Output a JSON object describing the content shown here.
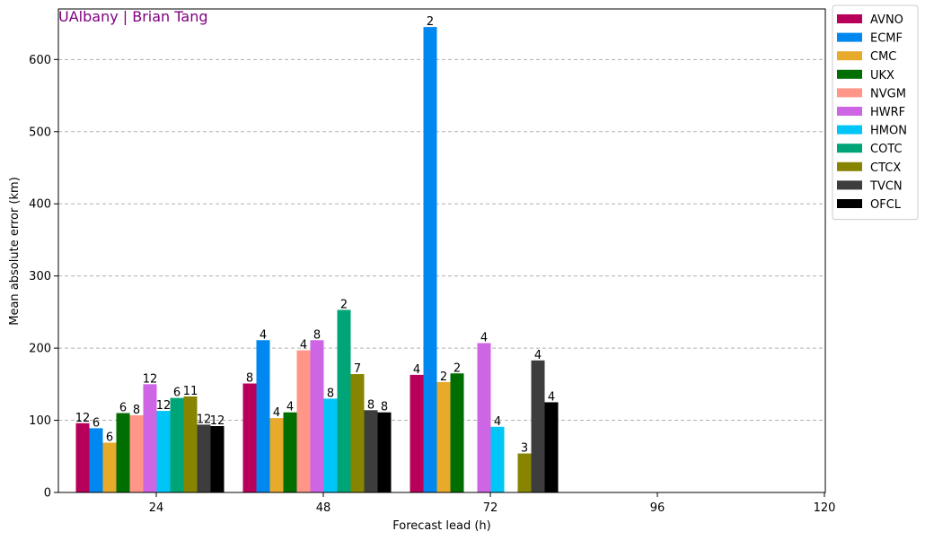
{
  "watermark": {
    "text": "UAlbany | Brian Tang",
    "color": "#800080"
  },
  "chart_data": {
    "type": "bar",
    "title": "",
    "xlabel": "Forecast lead (h)",
    "ylabel": "Mean absolute error (km)",
    "categories": [
      "24",
      "48",
      "72",
      "96",
      "120"
    ],
    "ylim": [
      0,
      670
    ],
    "yticks": [
      0,
      100,
      200,
      300,
      400,
      500,
      600
    ],
    "grid": "y-dashed",
    "legend_position": "outside-top-right",
    "series": [
      {
        "name": "AVNO",
        "color": "#b8005a",
        "values": [
          96,
          151,
          163,
          null,
          null
        ],
        "counts": [
          "12",
          "8",
          "4",
          "",
          ""
        ]
      },
      {
        "name": "ECMF",
        "color": "#0088f0",
        "values": [
          89,
          211,
          645,
          null,
          null
        ],
        "counts": [
          "6",
          "4",
          "2",
          "",
          ""
        ]
      },
      {
        "name": "CMC",
        "color": "#e8aa2a",
        "values": [
          69,
          103,
          153,
          null,
          null
        ],
        "counts": [
          "6",
          "4",
          "2",
          "",
          ""
        ]
      },
      {
        "name": "UKX",
        "color": "#006e00",
        "values": [
          110,
          111,
          165,
          null,
          null
        ],
        "counts": [
          "6",
          "4",
          "2",
          "",
          ""
        ]
      },
      {
        "name": "NVGM",
        "color": "#ff9688",
        "values": [
          107,
          197,
          null,
          null,
          null
        ],
        "counts": [
          "8",
          "4",
          "",
          "",
          ""
        ]
      },
      {
        "name": "HWRF",
        "color": "#cd65e5",
        "values": [
          150,
          211,
          207,
          null,
          null
        ],
        "counts": [
          "12",
          "8",
          "4",
          "",
          ""
        ]
      },
      {
        "name": "HMON",
        "color": "#00c6f8",
        "values": [
          113,
          130,
          91,
          null,
          null
        ],
        "counts": [
          "12",
          "8",
          "4",
          "",
          ""
        ]
      },
      {
        "name": "COTC",
        "color": "#00a577",
        "values": [
          131,
          253,
          null,
          null,
          null
        ],
        "counts": [
          "6",
          "2",
          "",
          "",
          ""
        ]
      },
      {
        "name": "CTCX",
        "color": "#878500",
        "values": [
          133,
          164,
          54,
          null,
          null
        ],
        "counts": [
          "11",
          "7",
          "3",
          "",
          ""
        ]
      },
      {
        "name": "TVCN",
        "color": "#3d3d3d",
        "values": [
          94,
          114,
          183,
          null,
          null
        ],
        "counts": [
          "12",
          "8",
          "4",
          "",
          ""
        ]
      },
      {
        "name": "OFCL",
        "color": "#000000",
        "values": [
          92,
          111,
          125,
          null,
          null
        ],
        "counts": [
          "12",
          "8",
          "4",
          "",
          ""
        ]
      }
    ]
  }
}
